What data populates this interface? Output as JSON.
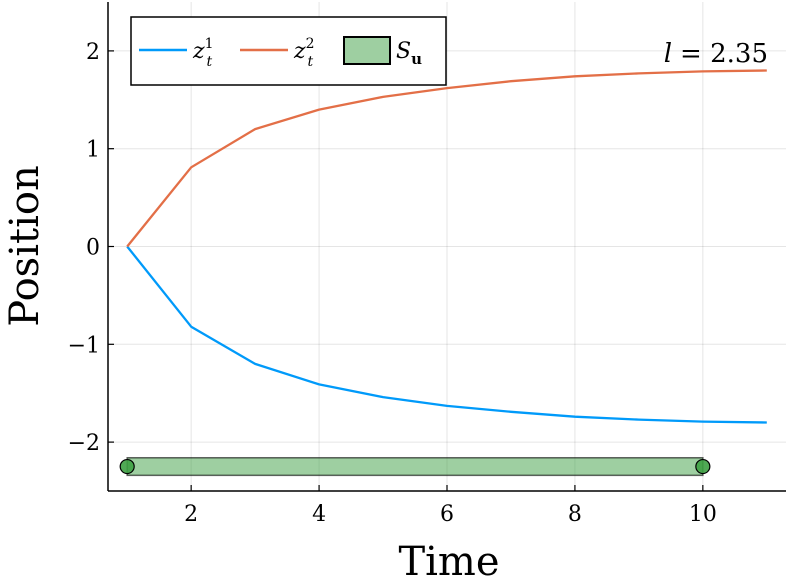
{
  "chart_data": {
    "type": "line",
    "xlabel": "Time",
    "ylabel": "Position",
    "xlim": [
      0.7,
      11.3
    ],
    "ylim": [
      -2.5,
      2.5
    ],
    "xticks": [
      2,
      4,
      6,
      8,
      10
    ],
    "yticks": [
      -2,
      -1,
      0,
      1,
      2
    ],
    "xtick_labels": [
      "2",
      "4",
      "6",
      "8",
      "10"
    ],
    "ytick_labels": [
      "−2",
      "−1",
      "0",
      "1",
      "2"
    ],
    "grid": true,
    "legend_position": "top-left",
    "annotation": {
      "text": "l = 2.35",
      "lhs": "l",
      "rhs": "= 2.35",
      "position": "top-right"
    },
    "x": [
      1,
      2,
      3,
      4,
      5,
      6,
      7,
      8,
      9,
      10,
      11
    ],
    "series": [
      {
        "name": "z_t^1",
        "label_base": "z",
        "label_sup": "1",
        "label_sub": "t",
        "color": "#009AFA",
        "values": [
          0,
          -0.82,
          -1.2,
          -1.41,
          -1.54,
          -1.63,
          -1.69,
          -1.74,
          -1.77,
          -1.79,
          -1.8
        ]
      },
      {
        "name": "z_t^2",
        "label_base": "z",
        "label_sup": "2",
        "label_sub": "t",
        "color": "#E36F47",
        "values": [
          0,
          0.81,
          1.2,
          1.4,
          1.53,
          1.62,
          1.69,
          1.74,
          1.77,
          1.79,
          1.8
        ]
      }
    ],
    "band": {
      "name": "S_u",
      "label_base": "S",
      "label_sub": "u",
      "color": "#3DA043",
      "fill_opacity": 0.5,
      "x_start": 1,
      "x_end": 10,
      "y_center": -2.25,
      "y_halfwidth": 0.09,
      "endpoints": [
        [
          1,
          -2.25
        ],
        [
          10,
          -2.25
        ]
      ]
    }
  }
}
